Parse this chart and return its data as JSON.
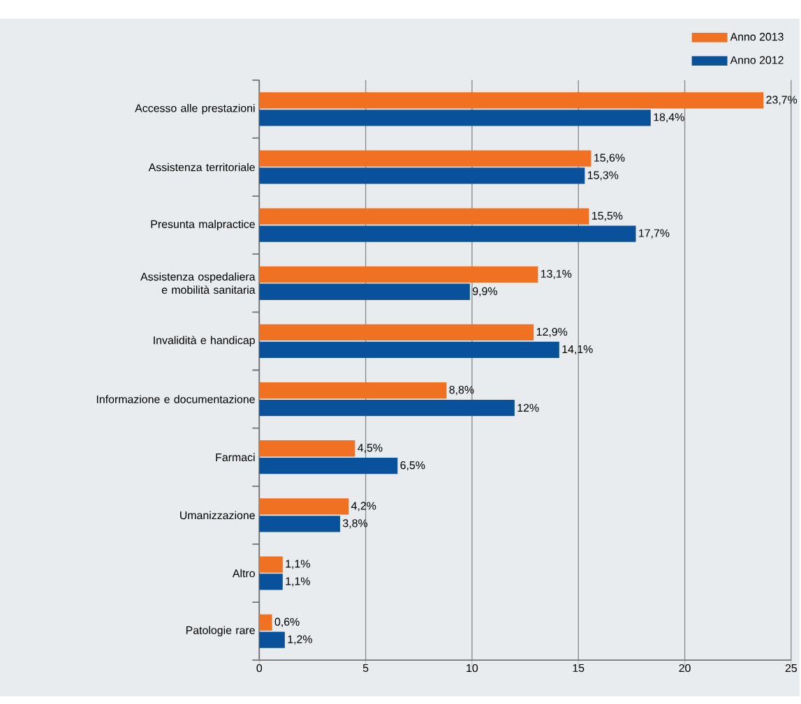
{
  "chart_data": {
    "type": "bar",
    "orientation": "horizontal",
    "categories": [
      "Accesso alle prestazioni",
      "Assistenza territoriale",
      "Presunta malpractice",
      "Assistenza ospedaliera e mobilità sanitaria",
      "Invalidità e handicap",
      "Informazione e documentazione",
      "Farmaci",
      "Umanizzazione",
      "Altro",
      "Patologie rare"
    ],
    "series": [
      {
        "name": "Anno 2013",
        "color": "#f07122",
        "values": [
          23.7,
          15.6,
          15.5,
          13.1,
          12.9,
          8.8,
          4.5,
          4.2,
          1.1,
          0.6
        ],
        "value_labels": [
          "23,7%",
          "15,6%",
          "15,5%",
          "13,1%",
          "12,9%",
          "8,8%",
          "4,5%",
          "4,2%",
          "1,1%",
          "0,6%"
        ]
      },
      {
        "name": "Anno 2012",
        "color": "#0a519c",
        "values": [
          18.4,
          15.3,
          17.7,
          9.9,
          14.1,
          12,
          6.5,
          3.8,
          1.1,
          1.2
        ],
        "value_labels": [
          "18,4%",
          "15,3%",
          "17,7%",
          "9,9%",
          "14,1%",
          "12%",
          "6,5%",
          "3,8%",
          "1,1%",
          "1,2%"
        ]
      }
    ],
    "xlim": [
      0,
      25
    ],
    "xticks": [
      0,
      5,
      10,
      15,
      20,
      25
    ],
    "grid": "x",
    "legend": "top right"
  }
}
